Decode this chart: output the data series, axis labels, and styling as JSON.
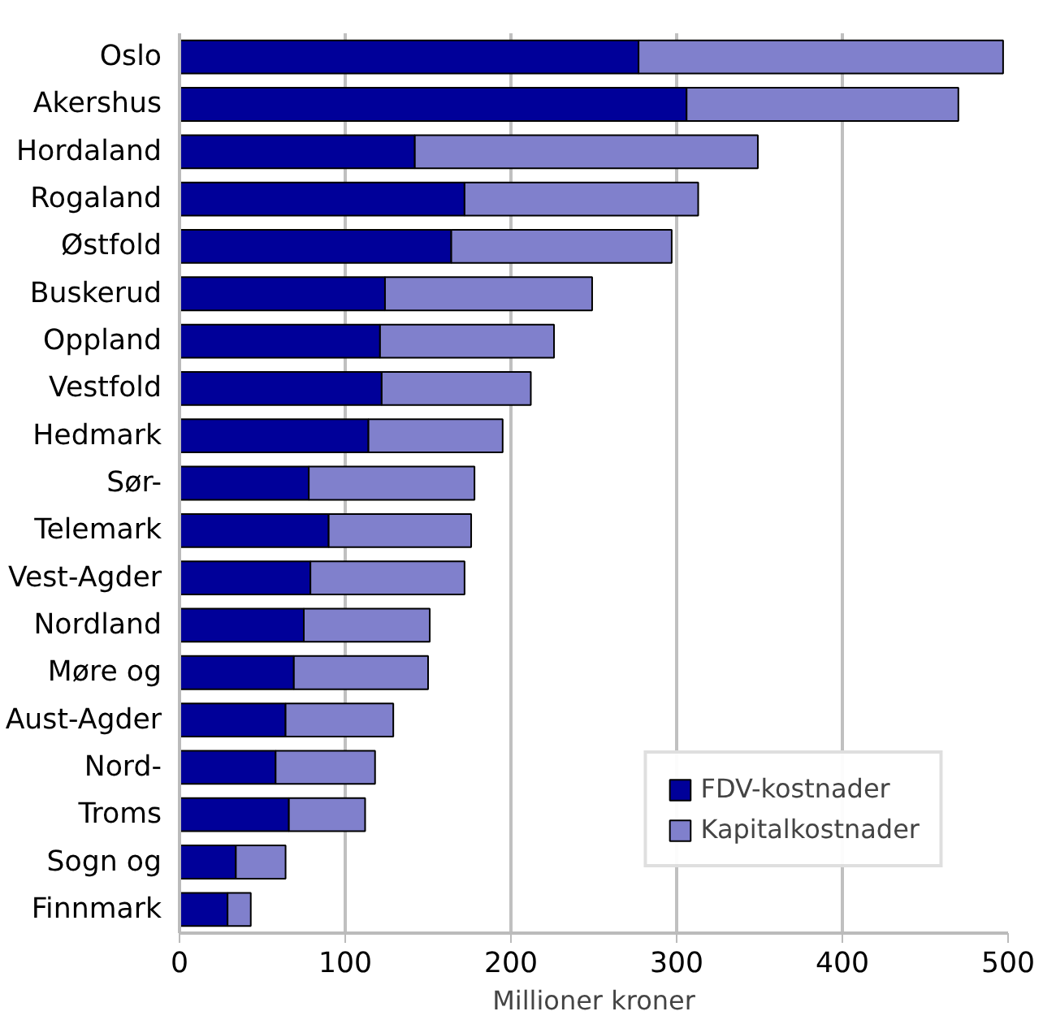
{
  "chart_data": {
    "type": "bar",
    "orientation": "horizontal",
    "stacked": true,
    "xlabel": "Millioner kroner",
    "categories": [
      "Oslo",
      "Akershus",
      "Hordaland",
      "Rogaland",
      "Østfold",
      "Buskerud",
      "Oppland",
      "Vestfold",
      "Hedmark",
      "Sør-",
      "Telemark",
      "Vest-Agder",
      "Nordland",
      "Møre og",
      "Aust-Agder",
      "Nord-",
      "Troms",
      "Sogn og",
      "Finnmark"
    ],
    "series": [
      {
        "name": "FDV-kostnader",
        "color": "#000099",
        "values": [
          277,
          306,
          142,
          172,
          164,
          124,
          121,
          122,
          114,
          78,
          90,
          79,
          75,
          69,
          64,
          58,
          66,
          34,
          29
        ]
      },
      {
        "name": "Kapitalkostnader",
        "color": "#8080cc",
        "values": [
          220,
          164,
          207,
          141,
          133,
          125,
          105,
          90,
          81,
          100,
          86,
          93,
          76,
          81,
          65,
          60,
          46,
          30,
          14
        ]
      }
    ],
    "xlim": [
      0,
      500
    ],
    "xticks": [
      0,
      100,
      200,
      300,
      400,
      500
    ],
    "grid": "x",
    "legend": "bottom right"
  }
}
